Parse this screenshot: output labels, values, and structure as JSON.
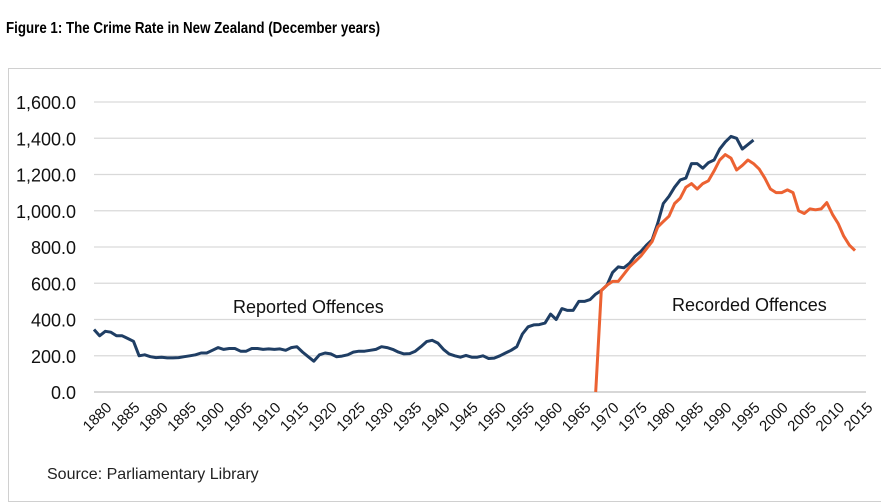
{
  "title": "Figure 1: The Crime Rate in New Zealand (December years)",
  "source": "Source: Parliamentary Library",
  "chart_data": {
    "type": "line",
    "title": "Figure 1: The Crime Rate in New Zealand (December years)",
    "xlabel": "",
    "ylabel": "",
    "xlim": [
      1880,
      2015
    ],
    "ylim": [
      0,
      1600
    ],
    "y_ticks": [
      "0.0",
      "200.0",
      "400.0",
      "600.0",
      "800.0",
      "1,000.0",
      "1,200.0",
      "1,400.0",
      "1,600.0"
    ],
    "x_ticks": [
      "1880",
      "1885",
      "1890",
      "1895",
      "1900",
      "1905",
      "1910",
      "1915",
      "1920",
      "1925",
      "1930",
      "1935",
      "1940",
      "1945",
      "1950",
      "1955",
      "1960",
      "1965",
      "1970",
      "1975",
      "1980",
      "1985",
      "1990",
      "1995",
      "2000",
      "2005",
      "2010",
      "2015"
    ],
    "grid": "horizontal",
    "annotations": [
      "Reported Offences",
      "Recorded Offences"
    ],
    "series": [
      {
        "name": "Reported Offences",
        "color": "#1f3e64",
        "start_year": 1880,
        "values": [
          345,
          310,
          335,
          330,
          310,
          310,
          295,
          280,
          200,
          205,
          195,
          190,
          192,
          188,
          188,
          190,
          195,
          200,
          205,
          215,
          215,
          230,
          245,
          235,
          240,
          240,
          225,
          225,
          240,
          240,
          235,
          238,
          235,
          238,
          230,
          245,
          250,
          220,
          195,
          170,
          205,
          215,
          210,
          195,
          198,
          205,
          220,
          225,
          225,
          230,
          235,
          250,
          245,
          235,
          220,
          210,
          212,
          225,
          250,
          278,
          285,
          270,
          235,
          210,
          200,
          192,
          202,
          192,
          192,
          200,
          185,
          187,
          200,
          215,
          230,
          250,
          320,
          360,
          370,
          372,
          380,
          430,
          400,
          460,
          450,
          450,
          500,
          500,
          510,
          540,
          560,
          590,
          660,
          690,
          685,
          710,
          750,
          775,
          810,
          840,
          930,
          1040,
          1080,
          1130,
          1170,
          1180,
          1260,
          1260,
          1235,
          1265,
          1280,
          1340,
          1380,
          1410,
          1400,
          1340,
          1365,
          1390
        ]
      },
      {
        "name": "Recorded Offences",
        "color": "#ec6232",
        "start_year": 1969,
        "values": [
          0,
          560,
          590,
          610,
          610,
          650,
          690,
          720,
          750,
          790,
          830,
          910,
          940,
          970,
          1040,
          1070,
          1130,
          1150,
          1120,
          1150,
          1165,
          1220,
          1280,
          1310,
          1290,
          1225,
          1250,
          1280,
          1260,
          1230,
          1180,
          1120,
          1100,
          1100,
          1115,
          1100,
          1000,
          985,
          1010,
          1005,
          1010,
          1045,
          980,
          930,
          860,
          810,
          780
        ]
      }
    ]
  }
}
